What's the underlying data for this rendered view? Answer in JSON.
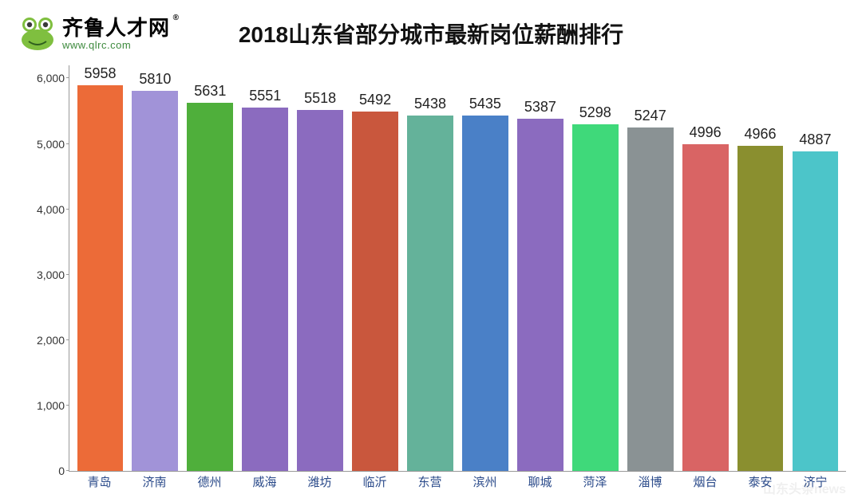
{
  "logo": {
    "cn": "齐鲁人才网",
    "registered": "®",
    "url": "www.qlrc.com",
    "frog_body_color": "#7fbf3f",
    "frog_eye_white": "#ffffff",
    "frog_pupil": "#3a3a3a"
  },
  "title": "2018山东省部分城市最新岗位薪酬排行",
  "chart": {
    "type": "bar",
    "ylim": [
      0,
      6200
    ],
    "yticks": [
      0,
      1000,
      2000,
      3000,
      4000,
      5000,
      6000
    ],
    "ytick_labels": [
      "0",
      "1,000",
      "2,000",
      "3,000",
      "4,000",
      "5,000",
      "6,000"
    ],
    "axis_color": "#999999",
    "background_color": "#ffffff",
    "value_fontsize": 18,
    "xlabel_fontsize": 15,
    "xlabel_color": "#2a4a8a",
    "ytick_fontsize": 14,
    "bar_width_ratio": 0.84,
    "categories": [
      "青岛",
      "济南",
      "德州",
      "威海",
      "潍坊",
      "临沂",
      "东营",
      "滨州",
      "聊城",
      "菏泽",
      "淄博",
      "烟台",
      "泰安",
      "济宁"
    ],
    "values": [
      5958,
      5810,
      5631,
      5551,
      5518,
      5492,
      5438,
      5435,
      5387,
      5298,
      5247,
      4996,
      4966,
      4887
    ],
    "bar_colors": [
      "#ec6b38",
      "#a193d8",
      "#4faf3b",
      "#8b6bbf",
      "#8b6bbf",
      "#c9573d",
      "#64b29a",
      "#4a80c7",
      "#8b6bbf",
      "#3fd97a",
      "#8a9294",
      "#d96464",
      "#8a8f2f",
      "#4cc5c9"
    ]
  },
  "watermark": "山东头条news"
}
